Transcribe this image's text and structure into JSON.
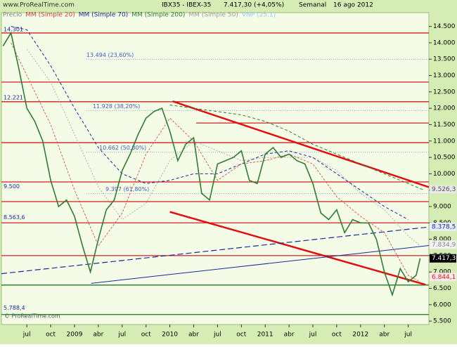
{
  "chart_data": {
    "type": "line",
    "site": "www.ProRealTime.com",
    "title": "IBX35 - IBEX-35",
    "last_price": "7.417,30 (+4,05%)",
    "period": "Semanal",
    "date": "16 ago 2012",
    "copyright": "© ProRealTime.com",
    "indicator_label": "VNP (25.1)",
    "indicator_color": "#9bc8f0",
    "xlim": [
      -3.2,
      50.6
    ],
    "ylim": [
      5395,
      14921
    ],
    "xticks": [
      {
        "value": 0,
        "label": "jul"
      },
      {
        "value": 3,
        "label": "oct"
      },
      {
        "value": 6,
        "label": "2009"
      },
      {
        "value": 9,
        "label": "abr"
      },
      {
        "value": 12,
        "label": "jul"
      },
      {
        "value": 15,
        "label": "oct"
      },
      {
        "value": 18,
        "label": "2010"
      },
      {
        "value": 21,
        "label": "abr"
      },
      {
        "value": 24,
        "label": "jul"
      },
      {
        "value": 27,
        "label": "oct"
      },
      {
        "value": 30,
        "label": "2011"
      },
      {
        "value": 33,
        "label": "abr"
      },
      {
        "value": 36,
        "label": "jul"
      },
      {
        "value": 39,
        "label": "oct"
      },
      {
        "value": 42,
        "label": "2012"
      },
      {
        "value": 45,
        "label": "abr"
      },
      {
        "value": 48,
        "label": "jul"
      }
    ],
    "yticks": [
      {
        "value": 5500,
        "label": "5.500"
      },
      {
        "value": 6000,
        "label": "6.000"
      },
      {
        "value": 6500,
        "label": "6.500"
      },
      {
        "value": 7000,
        "label": "7.000"
      },
      {
        "value": 7500,
        "label": "7.500"
      },
      {
        "value": 8000,
        "label": "8.000"
      },
      {
        "value": 8500,
        "label": "8.500"
      },
      {
        "value": 9000,
        "label": "9.000"
      },
      {
        "value": 9500,
        "label": "9.500"
      },
      {
        "value": 10000,
        "label": "10.000"
      },
      {
        "value": 10500,
        "label": "10.500"
      },
      {
        "value": 11000,
        "label": "11.000"
      },
      {
        "value": 11500,
        "label": "11.500"
      },
      {
        "value": 12000,
        "label": "12.000"
      },
      {
        "value": 12500,
        "label": "12.500"
      },
      {
        "value": 13000,
        "label": "13.000"
      },
      {
        "value": 13500,
        "label": "13.500"
      },
      {
        "value": 14000,
        "label": "14.000"
      },
      {
        "value": 14500,
        "label": "14.500"
      }
    ],
    "series": [
      {
        "name": "Precio",
        "color": "#2e7d32",
        "label_color": "#888888",
        "width": 1.6,
        "dash": "none",
        "x": [
          -3,
          -2,
          -1,
          0,
          1,
          2,
          3,
          4,
          5,
          6,
          7,
          8,
          9,
          10,
          11,
          12,
          13,
          14,
          15,
          16,
          17,
          18,
          19,
          20,
          21,
          22,
          23,
          24,
          25,
          26,
          27,
          28,
          29,
          30,
          31,
          32,
          33,
          34,
          35,
          36,
          37,
          38,
          39,
          40,
          41,
          42,
          43,
          44,
          45,
          46,
          47,
          48,
          49,
          49.5
        ],
        "values": [
          13900,
          14300,
          13200,
          12000,
          11600,
          11000,
          9800,
          9000,
          9200,
          8700,
          7800,
          7000,
          8000,
          8900,
          9200,
          10100,
          10600,
          11200,
          11700,
          11900,
          12000,
          11300,
          10400,
          10900,
          11100,
          9400,
          9200,
          10300,
          10400,
          10500,
          10700,
          9800,
          9700,
          10600,
          10800,
          10500,
          10600,
          10400,
          10300,
          9700,
          8800,
          8600,
          8900,
          8200,
          8600,
          8500,
          8500,
          8000,
          7000,
          6300,
          7100,
          6700,
          6900,
          7417
        ]
      },
      {
        "name": "MM (Simple 20)",
        "color": "#d04040",
        "width": 0.8,
        "dash": "3 2",
        "x": [
          -2,
          0,
          3,
          6,
          9,
          12,
          15,
          18,
          21,
          24,
          27,
          30,
          33,
          36,
          39,
          42,
          45,
          48,
          49.5
        ],
        "values": [
          14000,
          13000,
          11500,
          9500,
          7800,
          8800,
          10600,
          11700,
          11000,
          9800,
          10300,
          10400,
          10600,
          10300,
          9300,
          8700,
          8200,
          6900,
          6700
        ]
      },
      {
        "name": "MM (Simple 70)",
        "color": "#1a2a9a",
        "width": 1,
        "dash": "4 3",
        "x": [
          -2,
          0,
          3,
          6,
          9,
          12,
          15,
          18,
          21,
          24,
          27,
          30,
          33,
          36,
          39,
          42,
          45,
          48
        ],
        "values": [
          14500,
          14400,
          13300,
          12000,
          10800,
          10000,
          9700,
          9800,
          10000,
          10000,
          10300,
          10600,
          10700,
          10500,
          10000,
          9500,
          9000,
          8600
        ]
      },
      {
        "name": "MM (Simple 200)",
        "color": "#2e7d32",
        "width": 1,
        "dash": "4 3",
        "x": [
          18,
          21,
          24,
          27,
          30,
          33,
          36,
          39,
          42,
          45,
          48,
          50
        ],
        "values": [
          12100,
          12000,
          11900,
          11800,
          11600,
          11300,
          10900,
          10600,
          10300,
          10000,
          9700,
          9500
        ]
      },
      {
        "name": "MM (Simple 50)",
        "color": "#a0a0a0",
        "width": 0.8,
        "dash": "2 2",
        "x": [
          0,
          3,
          6,
          9,
          12,
          15,
          18,
          21,
          24,
          27,
          30,
          33,
          36,
          39,
          42,
          45,
          48,
          49.5
        ],
        "values": [
          13800,
          12800,
          11200,
          9600,
          8600,
          9100,
          10400,
          11000,
          10700,
          10400,
          10500,
          10500,
          10500,
          10100,
          9400,
          8900,
          8100,
          7800
        ]
      }
    ],
    "levels": [
      {
        "value": 14300,
        "color": "#d02020"
      },
      {
        "value": 12800,
        "color": "#d02020"
      },
      {
        "value": 12200,
        "color": "#d02020"
      },
      {
        "value": 11550,
        "color": "#d02020",
        "from": 21.3
      },
      {
        "value": 10950,
        "color": "#d02020"
      },
      {
        "value": 9750,
        "color": "#d02020"
      },
      {
        "value": 9150,
        "color": "#d02020"
      },
      {
        "value": 8500,
        "color": "#d02020"
      },
      {
        "value": 7500,
        "color": "#d02020"
      },
      {
        "value": 6600,
        "color": "#1f7a1f"
      },
      {
        "value": 5700,
        "color": "#1f7a1f"
      }
    ],
    "trendlines": [
      {
        "x": [
          18.35,
          50.6
        ],
        "y": [
          12214,
          9591
        ],
        "color": "#e01010",
        "width": 2.5,
        "dash": "none"
      },
      {
        "x": [
          18.0,
          50.2
        ],
        "y": [
          8836,
          6612
        ],
        "color": "#e01010",
        "width": 2.5,
        "dash": "none"
      },
      {
        "x": [
          8.1,
          50.6
        ],
        "y": [
          6654,
          7808
        ],
        "color": "#1a2a9a",
        "width": 1,
        "dash": "none"
      },
      {
        "x": [
          -3.2,
          50.6
        ],
        "y": [
          6948,
          8374
        ],
        "color": "#1a2a9a",
        "width": 1.2,
        "dash": "8 4"
      }
    ],
    "fib_levels": [
      {
        "value": 13494,
        "label": "13.494 (23,60%)"
      },
      {
        "value": 11928,
        "label": "11.928 (38,20%)"
      },
      {
        "value": 10662,
        "label": "10.662 (50,00%)"
      },
      {
        "value": 9397,
        "label": "9.397 (61,80%)"
      }
    ],
    "left_labels": [
      {
        "value": 14301,
        "label": "14.301"
      },
      {
        "value": 12221,
        "label": "12.221"
      },
      {
        "value": 9500,
        "label": "9.500"
      },
      {
        "value": 8563.6,
        "label": "8.563,6"
      },
      {
        "value": 5788.4,
        "label": "5.788,4"
      }
    ],
    "right_labels": [
      {
        "value": 9526.3,
        "label": "9.526,3",
        "color": "#555555",
        "bg": "#e8e8e8"
      },
      {
        "value": 8378.5,
        "label": "8.378,5",
        "color": "#1a2a9a",
        "bg": "#e8eef8"
      },
      {
        "value": 7834.9,
        "label": "7.834,9",
        "color": "#888888",
        "bg": "#f2f2f2"
      },
      {
        "value": 7417.3,
        "label": "7.417,30",
        "color": "#ffffff",
        "bg": "#000000"
      },
      {
        "value": 6844.1,
        "label": "6.844,1",
        "color": "#d02020",
        "bg": "#fbe8e8"
      }
    ]
  }
}
